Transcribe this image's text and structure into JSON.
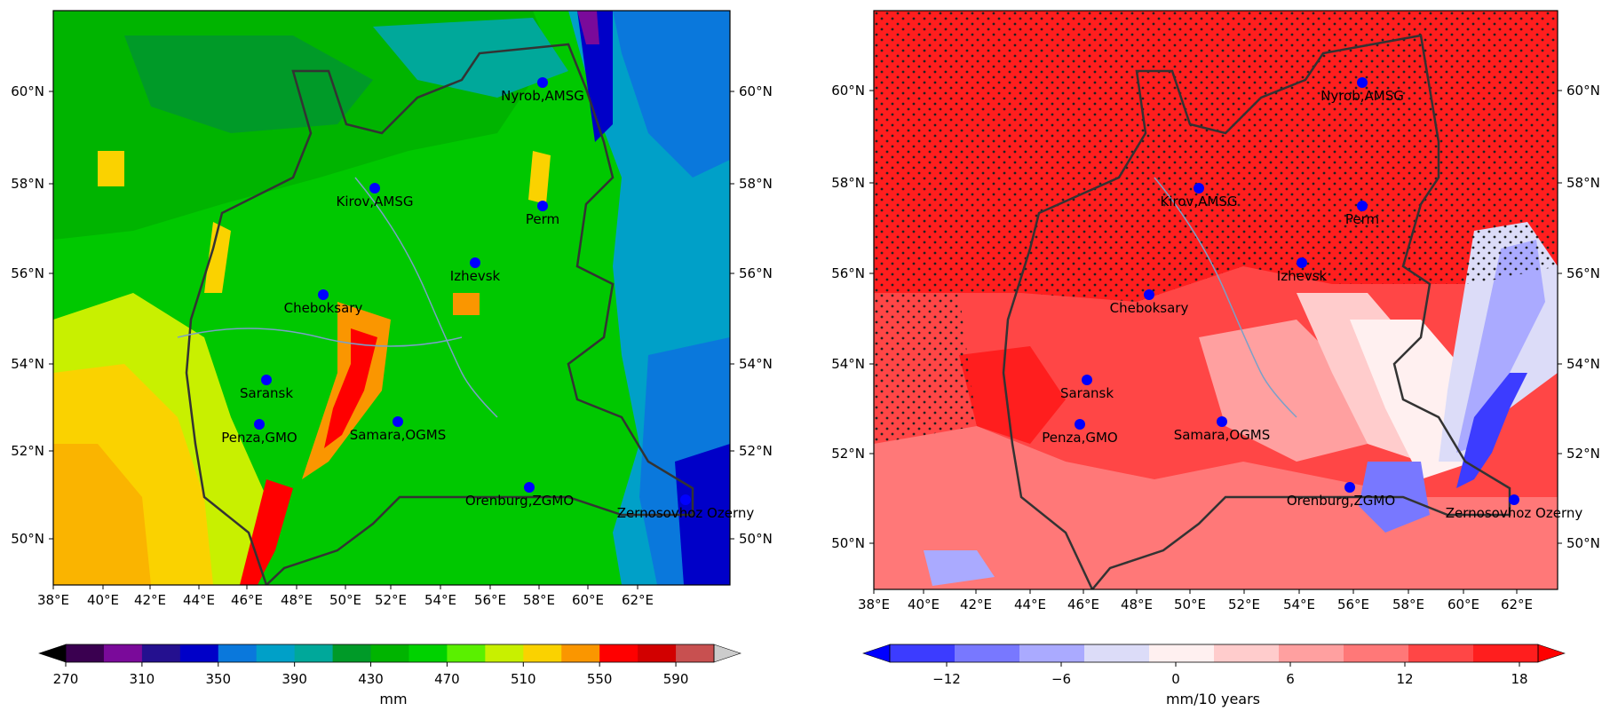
{
  "maps": [
    {
      "id": "precip-climatology",
      "lat_ticks": [
        "50°N",
        "52°N",
        "54°N",
        "56°N",
        "58°N",
        "60°N"
      ],
      "lon_ticks": [
        "38°E",
        "40°E",
        "42°E",
        "44°E",
        "46°E",
        "48°E",
        "50°E",
        "52°E",
        "54°E",
        "56°E",
        "58°E",
        "60°E",
        "62°E"
      ],
      "colorbar": {
        "colors": [
          "#000000",
          "#3a0050",
          "#7a0a9a",
          "#24108f",
          "#0000c8",
          "#0a78dc",
          "#00a0c8",
          "#00a89a",
          "#009a28",
          "#00b400",
          "#00d200",
          "#5af000",
          "#c8f000",
          "#fad200",
          "#fa9600",
          "#ff0000",
          "#d20000",
          "#c85050",
          "#cccccc"
        ],
        "tick_labels": [
          "270",
          "310",
          "350",
          "390",
          "430",
          "470",
          "510",
          "550",
          "590"
        ],
        "unit": "mm"
      },
      "cities": [
        {
          "name": "Nyrob,AMSG"
        },
        {
          "name": "Kirov,AMSG"
        },
        {
          "name": "Perm"
        },
        {
          "name": "Izhevsk"
        },
        {
          "name": "Cheboksary"
        },
        {
          "name": "Saransk"
        },
        {
          "name": "Penza,GMO"
        },
        {
          "name": "Samara,OGMS"
        },
        {
          "name": "Orenburg,ZGMO"
        },
        {
          "name": "Zernosovhoz Ozerny"
        }
      ]
    },
    {
      "id": "precip-trend",
      "lat_ticks": [
        "50°N",
        "52°N",
        "54°N",
        "56°N",
        "58°N",
        "60°N"
      ],
      "lon_ticks": [
        "38°E",
        "40°E",
        "42°E",
        "44°E",
        "46°E",
        "48°E",
        "50°E",
        "52°E",
        "54°E",
        "56°E",
        "58°E",
        "60°E",
        "62°E"
      ],
      "colorbar": {
        "colors": [
          "#0000ff",
          "#3c3cff",
          "#7878ff",
          "#aaaaff",
          "#dcdcf8",
          "#fff0f0",
          "#ffcccc",
          "#ffa0a0",
          "#ff7878",
          "#ff4646",
          "#ff1e1e",
          "#ff0000"
        ],
        "tick_labels": [
          "−12",
          "−6",
          "0",
          "6",
          "12",
          "18"
        ],
        "unit": "mm/10 years"
      },
      "cities": [
        {
          "name": "Nyrob,AMSG"
        },
        {
          "name": "Kirov,AMSG"
        },
        {
          "name": "Perm"
        },
        {
          "name": "Izhevsk"
        },
        {
          "name": "Cheboksary"
        },
        {
          "name": "Saransk"
        },
        {
          "name": "Penza,GMO"
        },
        {
          "name": "Samara,OGMS"
        },
        {
          "name": "Orenburg,ZGMO"
        },
        {
          "name": "Zernosovhoz Ozerny"
        }
      ]
    }
  ]
}
